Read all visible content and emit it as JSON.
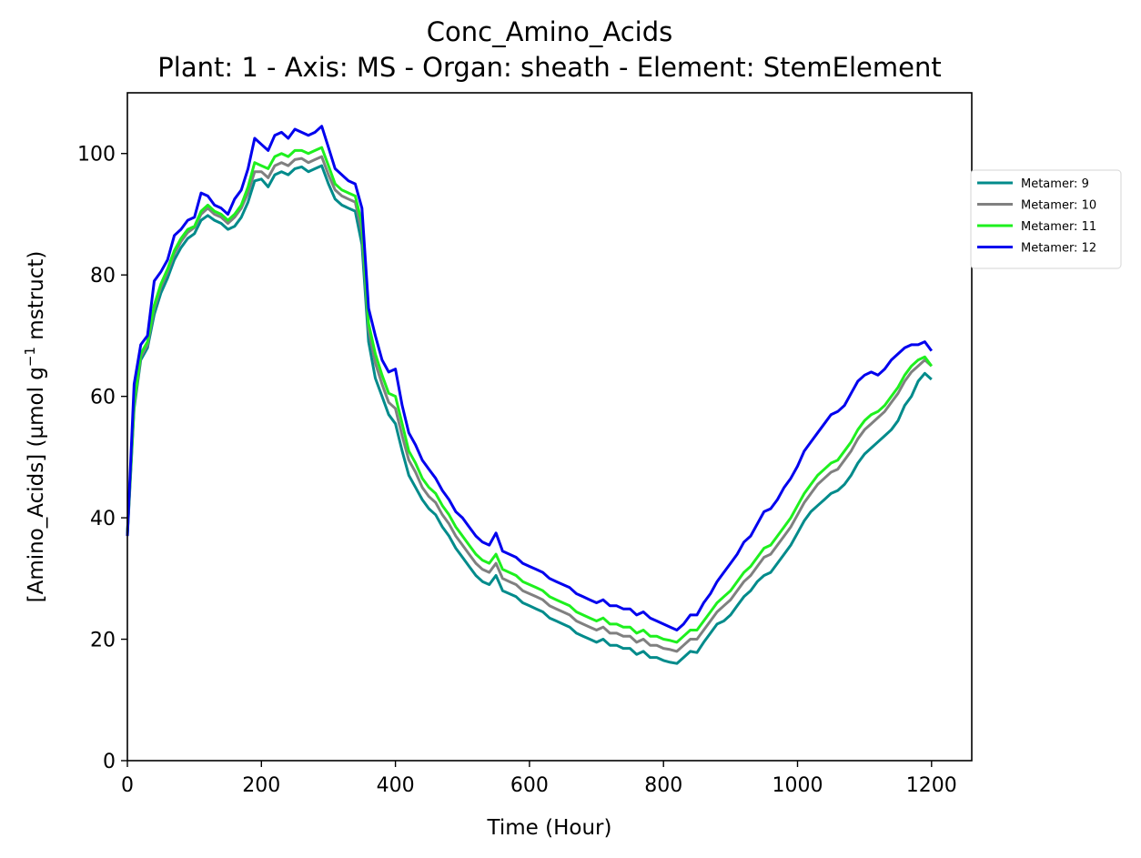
{
  "chart_data": {
    "type": "line",
    "title": "Conc_Amino_Acids",
    "subtitle": "Plant: 1 - Axis: MS - Organ: sheath - Element: StemElement",
    "xlabel": "Time (Hour)",
    "ylabel_main": "[Amino_Acids] (µmol g",
    "ylabel_sup": "−1",
    "ylabel_tail": " mstruct)",
    "xlim": [
      0,
      1260
    ],
    "ylim": [
      0,
      110
    ],
    "xticks": [
      0,
      200,
      400,
      600,
      800,
      1000,
      1200
    ],
    "yticks": [
      0,
      20,
      40,
      60,
      80,
      100
    ],
    "grid": false,
    "legend_position": "outside-right",
    "x": [
      0,
      10,
      20,
      30,
      40,
      50,
      60,
      70,
      80,
      90,
      100,
      110,
      120,
      130,
      140,
      150,
      160,
      170,
      180,
      190,
      200,
      210,
      220,
      230,
      240,
      250,
      260,
      270,
      280,
      290,
      300,
      310,
      320,
      330,
      340,
      350,
      360,
      370,
      380,
      390,
      400,
      410,
      420,
      430,
      440,
      450,
      460,
      470,
      480,
      490,
      500,
      510,
      520,
      530,
      540,
      550,
      560,
      570,
      580,
      590,
      600,
      610,
      620,
      630,
      640,
      650,
      660,
      670,
      680,
      690,
      700,
      710,
      720,
      730,
      740,
      750,
      760,
      770,
      780,
      790,
      800,
      810,
      820,
      830,
      840,
      850,
      860,
      870,
      880,
      890,
      900,
      910,
      920,
      930,
      940,
      950,
      960,
      970,
      980,
      990,
      1000,
      1010,
      1020,
      1030,
      1040,
      1050,
      1060,
      1070,
      1080,
      1090,
      1100,
      1110,
      1120,
      1130,
      1140,
      1150,
      1160,
      1170,
      1180,
      1190,
      1200
    ],
    "series": [
      {
        "name": "Metamer: 9",
        "color": "#008B8B",
        "values": [
          37.0,
          58.0,
          66.0,
          68.0,
          73.5,
          77.0,
          79.5,
          82.5,
          84.5,
          86.0,
          86.8,
          89.0,
          89.8,
          89.0,
          88.5,
          87.5,
          88.0,
          89.5,
          92.0,
          95.5,
          95.8,
          94.5,
          96.5,
          97.0,
          96.5,
          97.5,
          97.8,
          97.0,
          97.5,
          98.0,
          95.0,
          92.5,
          91.5,
          91.0,
          90.5,
          85.0,
          69.0,
          63.0,
          60.0,
          57.0,
          55.5,
          51.0,
          47.0,
          45.0,
          43.0,
          41.5,
          40.5,
          38.5,
          37.0,
          35.0,
          33.5,
          32.0,
          30.5,
          29.5,
          29.0,
          30.5,
          28.0,
          27.5,
          27.0,
          26.0,
          25.5,
          25.0,
          24.5,
          23.5,
          23.0,
          22.5,
          22.0,
          21.0,
          20.5,
          20.0,
          19.5,
          20.0,
          19.0,
          19.0,
          18.5,
          18.5,
          17.5,
          18.0,
          17.0,
          17.0,
          16.5,
          16.2,
          16.0,
          17.0,
          18.0,
          17.8,
          19.5,
          21.0,
          22.5,
          23.0,
          24.0,
          25.5,
          27.0,
          28.0,
          29.5,
          30.5,
          31.0,
          32.5,
          34.0,
          35.5,
          37.5,
          39.5,
          41.0,
          42.0,
          43.0,
          44.0,
          44.5,
          45.5,
          47.0,
          49.0,
          50.5,
          51.5,
          52.5,
          53.5,
          54.5,
          56.0,
          58.5,
          60.0,
          62.5,
          63.8,
          62.8
        ]
      },
      {
        "name": "Metamer: 10",
        "color": "#808080",
        "values": [
          37.5,
          58.5,
          66.5,
          68.5,
          74.5,
          78.0,
          80.5,
          83.5,
          85.5,
          87.0,
          87.8,
          90.0,
          91.0,
          90.0,
          89.5,
          88.5,
          89.5,
          91.0,
          93.5,
          97.0,
          97.0,
          96.0,
          98.0,
          98.5,
          98.0,
          99.0,
          99.2,
          98.5,
          99.0,
          99.5,
          96.5,
          94.0,
          93.0,
          92.5,
          92.0,
          87.0,
          71.0,
          65.5,
          62.0,
          59.0,
          58.0,
          53.5,
          49.5,
          47.5,
          45.0,
          43.5,
          42.5,
          40.5,
          39.0,
          37.0,
          35.5,
          34.0,
          32.5,
          31.5,
          31.0,
          32.5,
          30.0,
          29.5,
          29.0,
          28.0,
          27.5,
          27.0,
          26.5,
          25.5,
          25.0,
          24.5,
          24.0,
          23.0,
          22.5,
          22.0,
          21.5,
          22.0,
          21.0,
          21.0,
          20.5,
          20.5,
          19.5,
          20.0,
          19.0,
          19.0,
          18.5,
          18.3,
          18.0,
          19.0,
          20.0,
          20.0,
          21.5,
          23.0,
          24.5,
          25.5,
          26.5,
          28.0,
          29.5,
          30.5,
          32.0,
          33.5,
          34.0,
          35.5,
          37.0,
          38.5,
          40.5,
          42.5,
          44.0,
          45.5,
          46.5,
          47.5,
          48.0,
          49.5,
          51.0,
          53.0,
          54.5,
          55.5,
          56.5,
          57.5,
          59.0,
          60.5,
          62.5,
          64.0,
          65.0,
          66.0,
          65.0
        ]
      },
      {
        "name": "Metamer: 11",
        "color": "#1EF01E",
        "values": [
          37.5,
          59.0,
          67.0,
          69.0,
          75.0,
          78.5,
          81.0,
          84.0,
          86.0,
          87.5,
          88.0,
          90.5,
          91.5,
          90.5,
          90.0,
          89.0,
          90.0,
          91.5,
          94.5,
          98.5,
          98.0,
          97.5,
          99.5,
          100.0,
          99.5,
          100.5,
          100.5,
          100.0,
          100.5,
          101.0,
          98.0,
          95.0,
          94.0,
          93.5,
          93.0,
          88.5,
          72.0,
          67.0,
          63.5,
          60.5,
          60.0,
          55.5,
          51.0,
          49.0,
          46.5,
          45.0,
          44.0,
          42.0,
          40.5,
          38.5,
          37.0,
          35.5,
          34.0,
          33.0,
          32.5,
          34.0,
          31.5,
          31.0,
          30.5,
          29.5,
          29.0,
          28.5,
          28.0,
          27.0,
          26.5,
          26.0,
          25.5,
          24.5,
          24.0,
          23.5,
          23.0,
          23.5,
          22.5,
          22.5,
          22.0,
          22.0,
          21.0,
          21.5,
          20.5,
          20.5,
          20.0,
          19.8,
          19.5,
          20.5,
          21.5,
          21.5,
          23.0,
          24.5,
          26.0,
          27.0,
          28.0,
          29.5,
          31.0,
          32.0,
          33.5,
          35.0,
          35.5,
          37.0,
          38.5,
          40.0,
          42.0,
          44.0,
          45.5,
          47.0,
          48.0,
          49.0,
          49.5,
          51.0,
          52.5,
          54.5,
          56.0,
          57.0,
          57.5,
          58.5,
          60.0,
          61.5,
          63.5,
          65.0,
          66.0,
          66.5,
          65.0
        ]
      },
      {
        "name": "Metamer: 12",
        "color": "#0000EE",
        "values": [
          37.0,
          62.0,
          68.5,
          70.0,
          79.0,
          80.5,
          82.5,
          86.5,
          87.5,
          89.0,
          89.5,
          93.5,
          93.0,
          91.5,
          91.0,
          90.0,
          92.5,
          94.0,
          97.5,
          102.5,
          101.5,
          100.5,
          103.0,
          103.5,
          102.5,
          104.0,
          103.5,
          103.0,
          103.5,
          104.5,
          101.0,
          97.5,
          96.5,
          95.5,
          95.0,
          91.0,
          74.5,
          70.0,
          66.0,
          64.0,
          64.5,
          58.5,
          54.0,
          52.0,
          49.5,
          48.0,
          46.5,
          44.5,
          43.0,
          41.0,
          40.0,
          38.5,
          37.0,
          36.0,
          35.5,
          37.5,
          34.5,
          34.0,
          33.5,
          32.5,
          32.0,
          31.5,
          31.0,
          30.0,
          29.5,
          29.0,
          28.5,
          27.5,
          27.0,
          26.5,
          26.0,
          26.5,
          25.5,
          25.5,
          25.0,
          25.0,
          24.0,
          24.5,
          23.5,
          23.0,
          22.5,
          22.0,
          21.5,
          22.5,
          24.0,
          24.0,
          26.0,
          27.5,
          29.5,
          31.0,
          32.5,
          34.0,
          36.0,
          37.0,
          39.0,
          41.0,
          41.5,
          43.0,
          45.0,
          46.5,
          48.5,
          51.0,
          52.5,
          54.0,
          55.5,
          57.0,
          57.5,
          58.5,
          60.5,
          62.5,
          63.5,
          64.0,
          63.5,
          64.5,
          66.0,
          67.0,
          68.0,
          68.5,
          68.5,
          69.0,
          67.5
        ]
      }
    ]
  }
}
